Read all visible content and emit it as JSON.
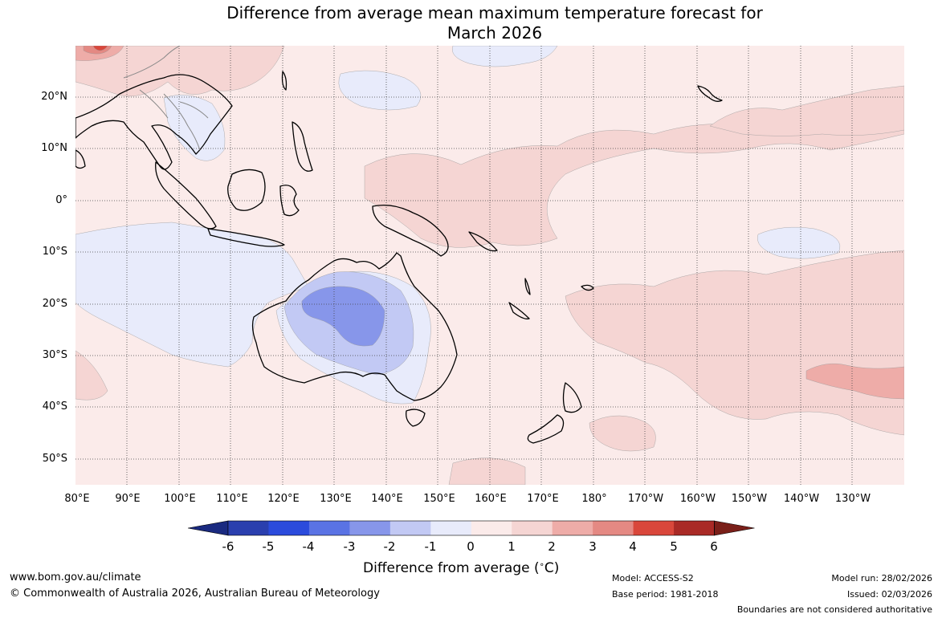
{
  "title": {
    "line1": "Difference from average mean maximum temperature forecast for",
    "line2": "March 2026"
  },
  "map": {
    "lat_labels": [
      "20°N",
      "10°N",
      "0°",
      "10°S",
      "20°S",
      "30°S",
      "40°S",
      "50°S"
    ],
    "lon_labels": [
      "80°E",
      "90°E",
      "100°E",
      "110°E",
      "120°E",
      "130°E",
      "140°E",
      "150°E",
      "160°E",
      "170°E",
      "180°",
      "170°W",
      "160°W",
      "150°W",
      "140°W",
      "130°W"
    ],
    "colors": {
      "ocean_base": "#fbebea",
      "warm_1_2": "#f5d5d3",
      "warm_2_3": "#eeaca8",
      "warm_3_4": "#e48983",
      "warm_4_5": "#d9473b",
      "cool_0_m1": "#e8ebfb",
      "cool_m1_m2": "#c2c9f4",
      "cool_m2_m3": "#8796ea",
      "land_outline": "#000000"
    }
  },
  "colorbar": {
    "ticks": [
      "-6",
      "-5",
      "-4",
      "-3",
      "-2",
      "-1",
      "0",
      "1",
      "2",
      "3",
      "4",
      "5",
      "6"
    ],
    "colors": [
      "#1a2a80",
      "#2a3fae",
      "#2b4bdc",
      "#5a73e4",
      "#8796ea",
      "#c2c9f4",
      "#e8ebfb",
      "#fbebea",
      "#f5d5d3",
      "#eeaca8",
      "#e48983",
      "#d9473b",
      "#a92a26",
      "#7a1f19"
    ],
    "label": "Difference from average (",
    "label_unit": "C)",
    "degree": "∘"
  },
  "footer": {
    "website": "www.bom.gov.au/climate",
    "copyright": "© Commonwealth of Australia 2026, Australian Bureau of Meteorology",
    "model": "Model: ACCESS-S2",
    "base_period": "Base period: 1981-2018",
    "model_run": "Model run: 28/02/2026",
    "issued": "Issued: 02/03/2026",
    "boundaries": "Boundaries are not considered authoritative"
  }
}
